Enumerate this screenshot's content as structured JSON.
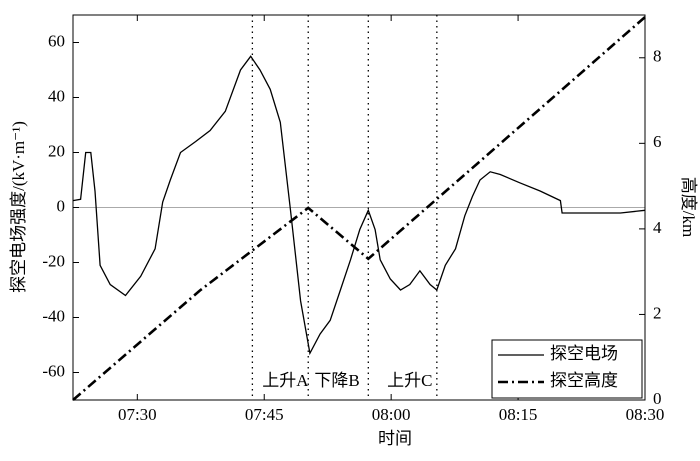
{
  "chart_data": {
    "type": "line",
    "xlabel": "时间",
    "ylabel": "探空电场强度/(kV·m⁻¹)",
    "y2label": "高度/km",
    "xlim": [
      442.4,
      510
    ],
    "ylim": [
      -70,
      70
    ],
    "y2lim": [
      0,
      9
    ],
    "xticks": [
      {
        "value": 450,
        "label": "07:30"
      },
      {
        "value": 465,
        "label": "07:45"
      },
      {
        "value": 480,
        "label": "08:00"
      },
      {
        "value": 495,
        "label": "08:15"
      },
      {
        "value": 510,
        "label": "08:30"
      }
    ],
    "yticks": [
      -60,
      -40,
      -20,
      0,
      20,
      40,
      60
    ],
    "y2ticks": [
      0,
      2,
      4,
      6,
      8
    ],
    "vlines": [
      463.6,
      470.2,
      477.3,
      485.4
    ],
    "annotations": [
      {
        "text": "上升A",
        "x": 467.5
      },
      {
        "text": "下降B",
        "x": 473.6
      },
      {
        "text": "上升C",
        "x": 482.2
      }
    ],
    "legend": "lower right",
    "series": [
      {
        "name": "探空电场",
        "color": "#000000",
        "dash": "solid",
        "axis": "y",
        "x": [
          442.4,
          443.3,
          443.9,
          444.5,
          445.0,
          445.6,
          446.8,
          448.6,
          450.4,
          452.1,
          453.0,
          453.9,
          455.1,
          456.9,
          458.6,
          460.4,
          462.2,
          463.4,
          464.5,
          465.7,
          466.9,
          468.1,
          469.3,
          470.4,
          471.6,
          472.8,
          474.0,
          475.2,
          476.3,
          477.3,
          478.1,
          478.7,
          479.9,
          481.1,
          482.2,
          483.4,
          484.6,
          485.4,
          486.4,
          487.6,
          488.7,
          489.6,
          490.5,
          491.7,
          492.9,
          495.2,
          497.6,
          500.0,
          500.2,
          502.3,
          504.7,
          507.1,
          510.0
        ],
        "values": [
          2.5,
          3,
          20,
          20,
          6,
          -21,
          -28,
          -32,
          -25,
          -15,
          2,
          10,
          20,
          24,
          28,
          35,
          50,
          55,
          50,
          43,
          31,
          -1,
          -34,
          -53,
          -46,
          -41,
          -30,
          -19,
          -8,
          -1,
          -8,
          -19,
          -26,
          -30,
          -28,
          -23,
          -28,
          -30,
          -21,
          -15,
          -3,
          4,
          10,
          13,
          12,
          9,
          6,
          2.5,
          -2,
          -2,
          -2,
          -2,
          -1
        ]
      },
      {
        "name": "探空高度",
        "color": "#000000",
        "dash": "dashdot",
        "axis": "y2",
        "x": [
          442.4,
          457.4,
          470.2,
          477.3,
          490.5,
          510.0
        ],
        "values": [
          0,
          2.56,
          4.49,
          3.3,
          5.58,
          8.95
        ]
      }
    ]
  }
}
